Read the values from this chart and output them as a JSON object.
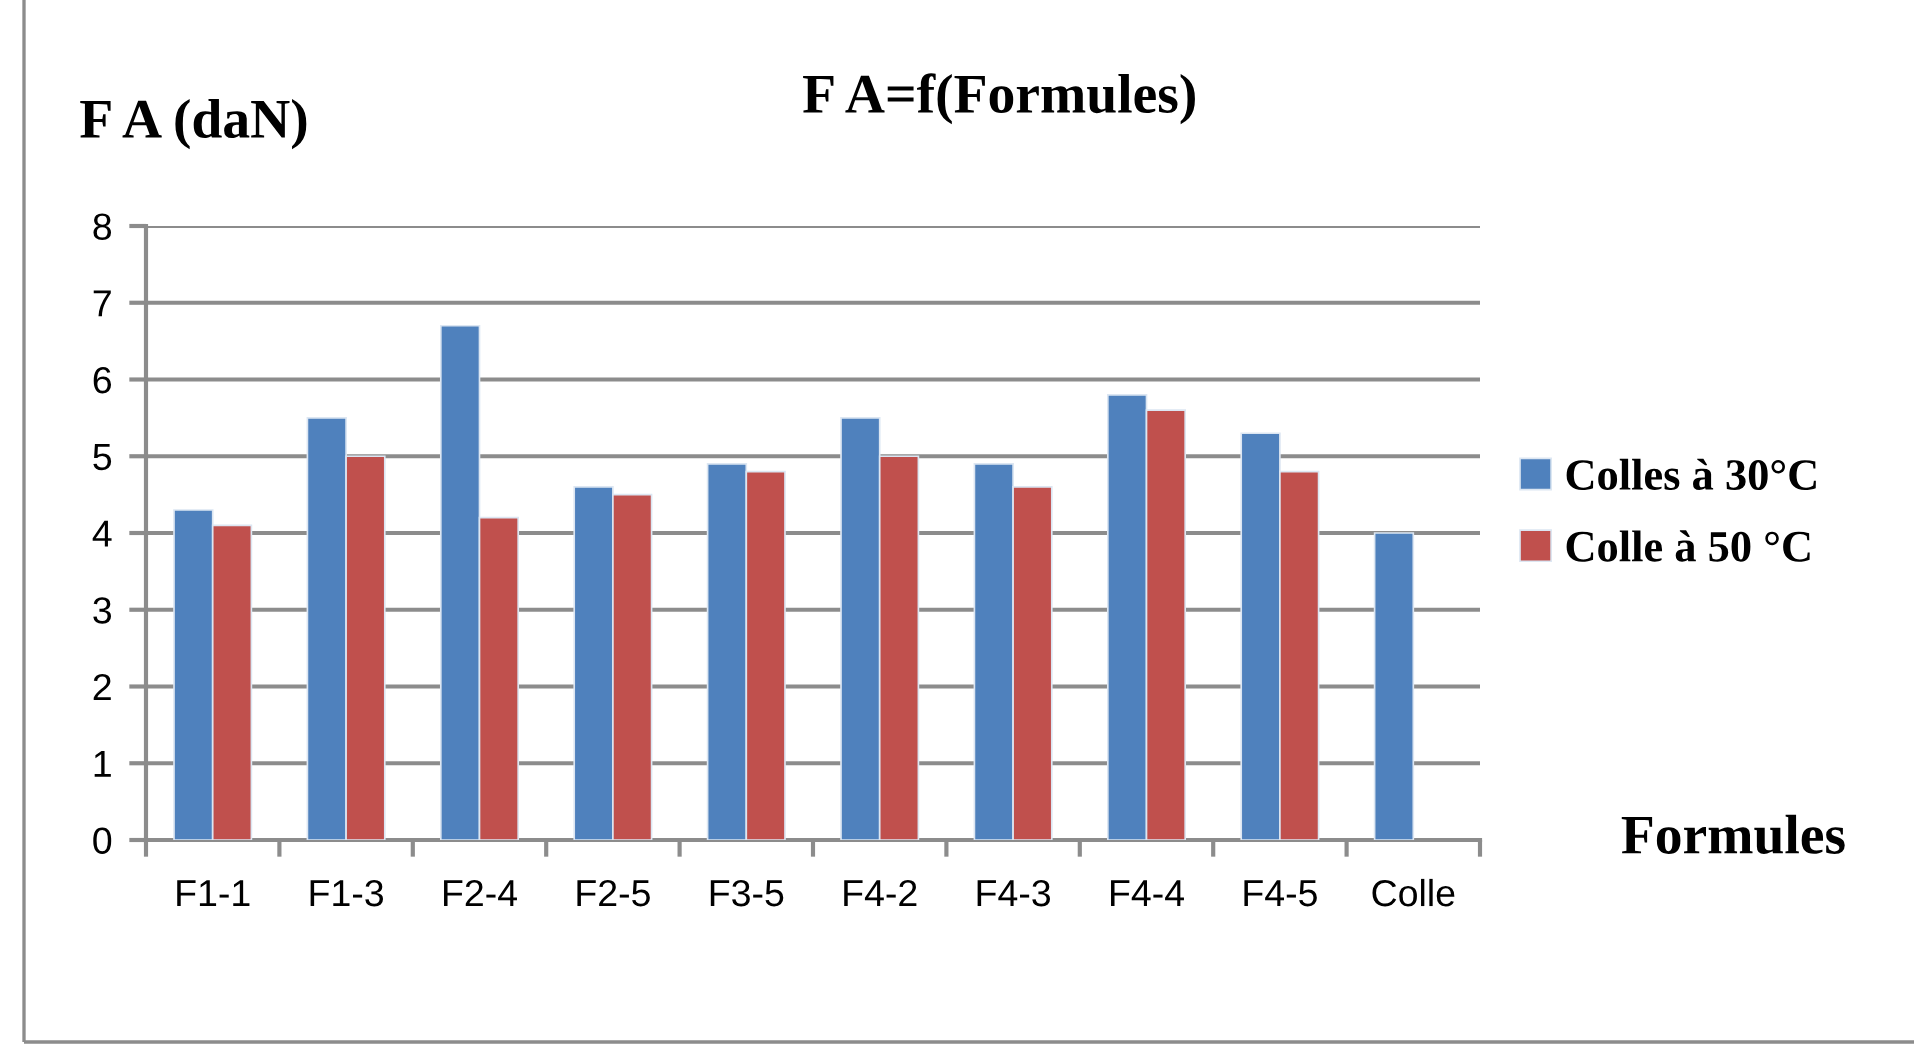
{
  "chart_data": {
    "type": "bar",
    "title": "F A=f(Formules)",
    "ylabel": "F A (daN)",
    "xlabel": "Formules",
    "categories": [
      "F1-1",
      "F1-3",
      "F2-4",
      "F2-5",
      "F3-5",
      "F4-2",
      "F4-3",
      "F4-4",
      "F4-5",
      "Colle"
    ],
    "series": [
      {
        "name": "Colles à 30°C",
        "color": "#4f81bd",
        "values": [
          4.3,
          5.5,
          6.7,
          4.6,
          4.9,
          5.5,
          4.9,
          5.8,
          5.3,
          4.0
        ]
      },
      {
        "name": "Colle à 50 °C",
        "color": "#c0504d",
        "values": [
          4.1,
          5.0,
          4.2,
          4.5,
          4.8,
          5.0,
          4.6,
          5.6,
          4.8,
          null
        ]
      }
    ],
    "ylim": [
      0,
      8
    ],
    "yticks": [
      0,
      1,
      2,
      3,
      4,
      5,
      6,
      7,
      8
    ],
    "grid": "y",
    "legend": "right"
  }
}
